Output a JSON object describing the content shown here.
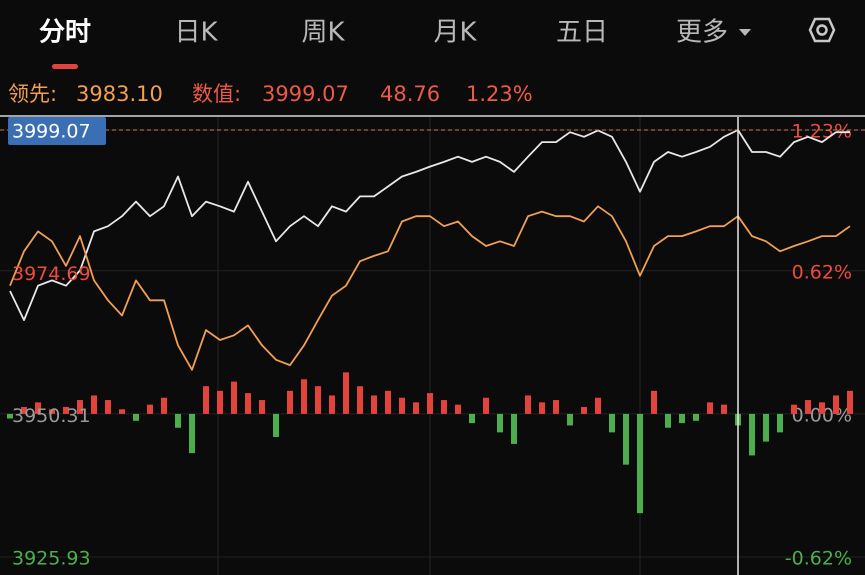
{
  "tabs": [
    "分时",
    "日K",
    "周K",
    "月K",
    "五日",
    "更多"
  ],
  "info": {
    "lead_label": "领先:",
    "lead_value": "3983.10",
    "value_label": "数值:",
    "value": "3999.07",
    "change": "48.76",
    "change_pct": "1.23%"
  },
  "chart_data": {
    "type": "line",
    "ylim": [
      3925.93,
      3999.07
    ],
    "yticks": [
      3925.93,
      3950.31,
      3974.69,
      3999.07
    ],
    "y2lim": [
      -0.62,
      1.23
    ],
    "y2ticks": [
      {
        "value": -0.62,
        "label": "-0.62%"
      },
      {
        "value": 0,
        "label": "0.00%"
      },
      {
        "value": 0.62,
        "label": "0.62%"
      },
      {
        "value": 1.23,
        "label": "1.23%"
      }
    ],
    "grid": true,
    "series": [
      {
        "color": "#e8e8e8",
        "values": [
          3971.5,
          3966.5,
          3972.4,
          3973.3,
          3972.4,
          3975.0,
          3981.7,
          3982.6,
          3984.3,
          3986.8,
          3984.3,
          3986.0,
          3991.1,
          3984.3,
          3986.8,
          3986.0,
          3985.1,
          3990.2,
          3985.1,
          3980.0,
          3982.6,
          3984.3,
          3982.6,
          3986.0,
          3985.1,
          3987.7,
          3987.7,
          3989.4,
          3991.1,
          3991.9,
          3992.8,
          3993.6,
          3994.5,
          3993.6,
          3994.5,
          3993.6,
          3991.9,
          3994.5,
          3997.0,
          3997.0,
          3998.7,
          3997.9,
          3999.0,
          3997.9,
          3993.6,
          3988.5,
          3993.6,
          3995.3,
          3994.5,
          3995.3,
          3996.2,
          3997.9,
          3999.07,
          3995.3,
          3995.3,
          3994.5,
          3997.0,
          3997.9,
          3997.0,
          3998.7,
          3998.7
        ]
      },
      {
        "color": "#f0a050",
        "values": [
          3972.4,
          3978.3,
          3981.7,
          3980.0,
          3975.8,
          3980.9,
          3973.3,
          3969.9,
          3967.3,
          3973.3,
          3969.9,
          3969.9,
          3962.2,
          3958.0,
          3964.8,
          3963.1,
          3963.9,
          3965.6,
          3962.2,
          3959.7,
          3958.8,
          3962.2,
          3966.5,
          3970.7,
          3972.4,
          3976.6,
          3977.5,
          3978.3,
          3983.4,
          3984.3,
          3984.3,
          3982.6,
          3983.4,
          3980.9,
          3979.2,
          3980.0,
          3979.2,
          3984.3,
          3985.1,
          3984.3,
          3984.3,
          3983.4,
          3986.0,
          3984.3,
          3980.0,
          3974.1,
          3979.2,
          3980.9,
          3980.9,
          3981.7,
          3982.6,
          3982.6,
          3984.3,
          3980.9,
          3980.0,
          3978.3,
          3979.2,
          3980.0,
          3980.9,
          3980.9,
          3982.6
        ]
      },
      {
        "type": "bar",
        "axis": "y2",
        "color": "#e2433b",
        "negative_color": "#4cae4c",
        "values": [
          -0.02,
          0.03,
          0.05,
          0.02,
          0.03,
          0.06,
          0.08,
          0.06,
          0.02,
          -0.03,
          0.04,
          0.07,
          -0.06,
          -0.17,
          0.12,
          0.1,
          0.14,
          0.09,
          0.06,
          -0.1,
          0.1,
          0.15,
          0.12,
          0.08,
          0.18,
          0.12,
          0.08,
          0.1,
          0.07,
          0.05,
          0.09,
          0.06,
          0.04,
          -0.04,
          0.07,
          -0.08,
          -0.13,
          0.08,
          0.05,
          0.06,
          -0.05,
          0.03,
          0.07,
          -0.08,
          -0.22,
          -0.43,
          0.1,
          -0.06,
          -0.04,
          -0.03,
          0.05,
          0.04,
          -0.05,
          -0.18,
          -0.12,
          -0.08,
          0.04,
          0.06,
          0.05,
          0.08,
          0.1
        ]
      }
    ]
  }
}
